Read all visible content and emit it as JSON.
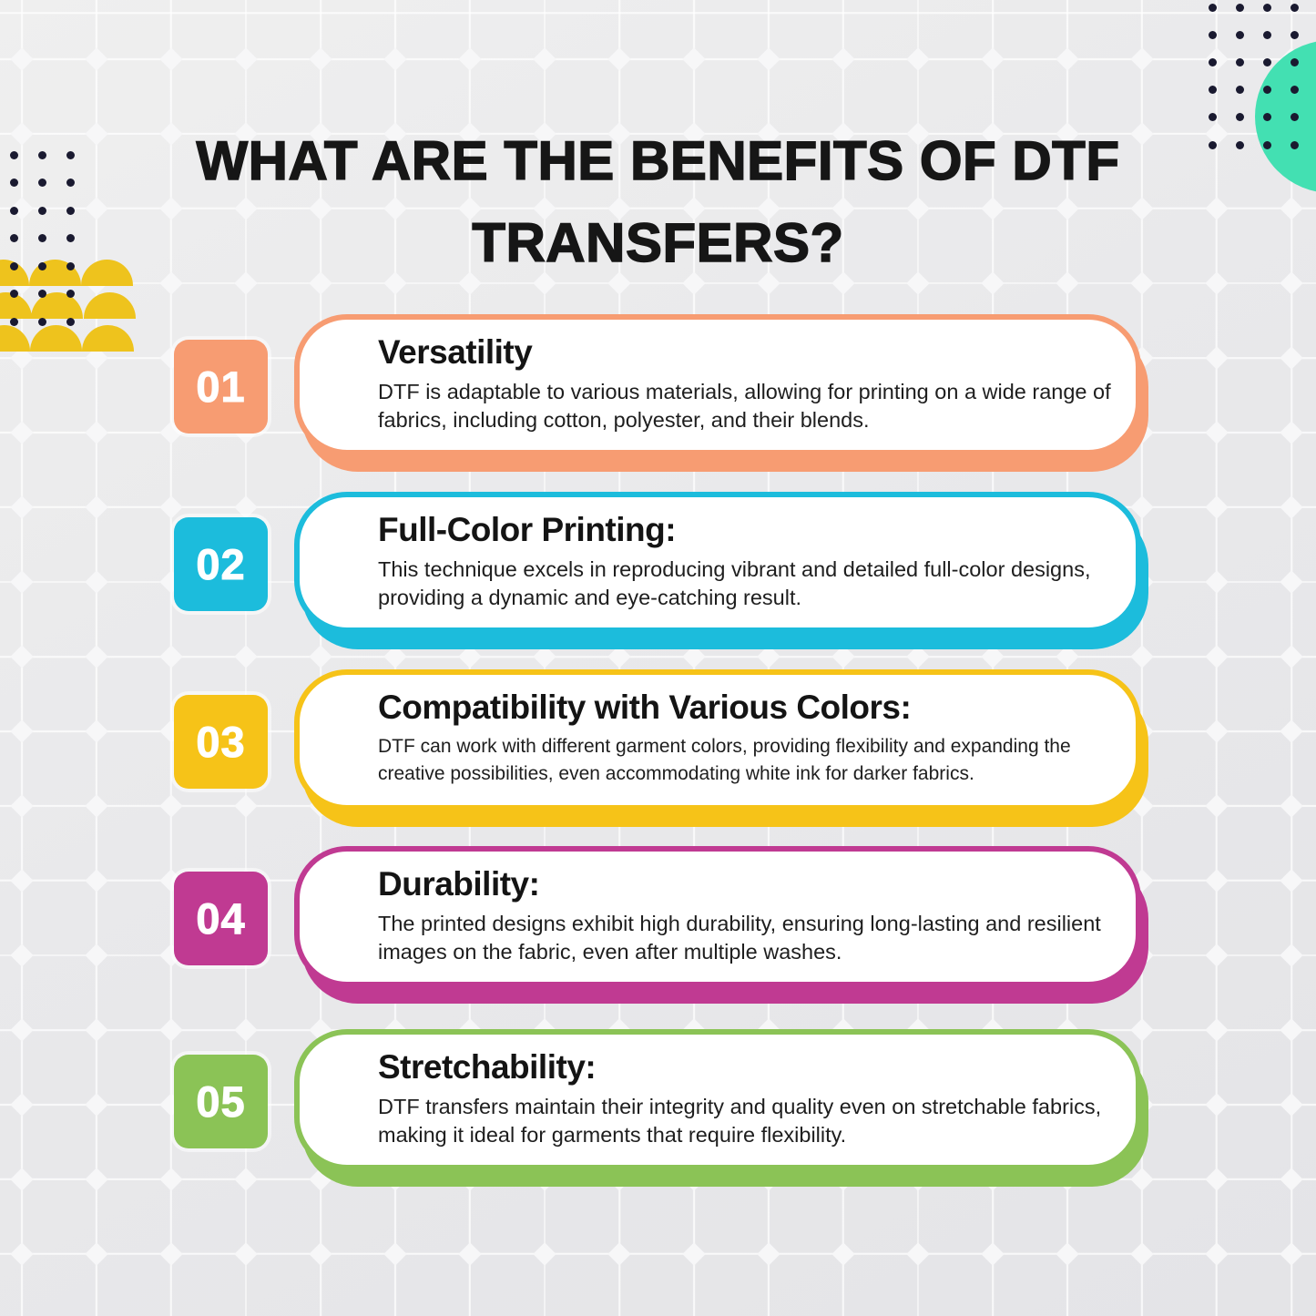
{
  "title": {
    "line1": "WHAT ARE THE BENEFITS OF DTF",
    "line2": "TRANSFERS?"
  },
  "items": [
    {
      "number": "01",
      "heading": "Versatility",
      "body": "DTF is adaptable to various materials, allowing for printing on a wide range of fabrics, including cotton, polyester, and their blends.",
      "color": "#F79C72"
    },
    {
      "number": "02",
      "heading": "Full-Color Printing:",
      "body": "This technique excels in reproducing vibrant and detailed full-color designs, providing a dynamic and eye-catching result.",
      "color": "#1CBCDC"
    },
    {
      "number": "03",
      "heading": "Compatibility with Various Colors:",
      "body": "DTF can work with different garment colors, providing flexibility and expanding the creative possibilities, even accommodating white ink for darker fabrics.",
      "color": "#F6C318"
    },
    {
      "number": "04",
      "heading": "Durability:",
      "body": "The printed designs exhibit high durability, ensuring long-lasting and resilient images on the fabric, even after multiple washes.",
      "color": "#C03A92"
    },
    {
      "number": "05",
      "heading": "Stretchability:",
      "body": "DTF transfers maintain their integrity and quality even on stretchable fabrics, making it ideal for garments that require flexibility.",
      "color": "#8BC356"
    }
  ],
  "decor": {
    "dot_color": "#1A1A30",
    "teal_circle_color": "#43E0B2",
    "scallop_color": "#EEC31D",
    "background_color": "#E9E9EB",
    "grid_line_color": "#F7F7F8",
    "title_color": "#161616"
  }
}
